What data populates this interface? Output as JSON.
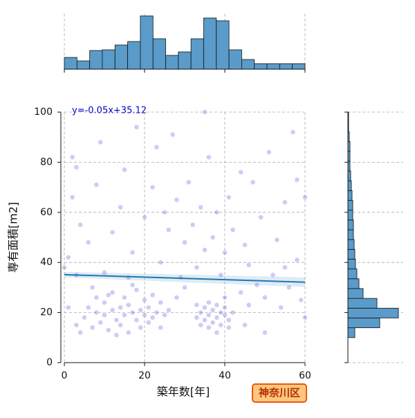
{
  "chart_data": {
    "type": "jointplot",
    "x_label": "築年数[年]",
    "y_label": "専有面積[m2]",
    "annotation": "y=-0.05x+35.12",
    "region_label": "神奈川区",
    "regression": {
      "slope": -0.05,
      "intercept": 35.12
    },
    "color": "#0000cc",
    "line_color": "#1f77b4",
    "hist_color": "#5a9bc9",
    "xlim": [
      0,
      60
    ],
    "xticks": [
      0,
      20,
      40,
      60
    ],
    "ylim": [
      0,
      100
    ],
    "yticks": [
      0,
      20,
      40,
      60,
      80,
      100
    ],
    "grid": true,
    "x": [
      5,
      6,
      7,
      8,
      8,
      9,
      10,
      10,
      11,
      12,
      12,
      13,
      14,
      14,
      15,
      15,
      16,
      16,
      17,
      18,
      18,
      19,
      19,
      20,
      20,
      21,
      21,
      22,
      23,
      24,
      24,
      25,
      7,
      11,
      13,
      17,
      22,
      3,
      4,
      26,
      33,
      34,
      34,
      35,
      35,
      36,
      36,
      37,
      37,
      38,
      38,
      39,
      39,
      40,
      40,
      41,
      41,
      42,
      36,
      38,
      33,
      40,
      1,
      2,
      3,
      2,
      4,
      6,
      8,
      10,
      12,
      14,
      15,
      17,
      18,
      20,
      22,
      23,
      24,
      26,
      27,
      28,
      29,
      30,
      31,
      32,
      33,
      34,
      35,
      36,
      37,
      38,
      39,
      40,
      41,
      42,
      44,
      45,
      46,
      47,
      48,
      49,
      50,
      51,
      52,
      53,
      54,
      55,
      56,
      57,
      58,
      59,
      60,
      60,
      46,
      50,
      55,
      44,
      28,
      30,
      3,
      1,
      0,
      9,
      16,
      25,
      45,
      58,
      35
    ],
    "y": [
      18,
      22,
      14,
      20,
      26,
      16,
      19,
      24,
      13,
      21,
      28,
      17,
      22,
      15,
      19,
      26,
      12,
      23,
      20,
      17,
      29,
      21,
      14,
      19,
      25,
      22,
      16,
      18,
      20,
      14,
      24,
      19,
      30,
      27,
      11,
      31,
      27,
      15,
      12,
      21,
      18,
      20,
      15,
      22,
      17,
      19,
      14,
      21,
      16,
      18,
      23,
      20,
      15,
      19,
      22,
      17,
      14,
      20,
      24,
      12,
      23,
      26,
      42,
      66,
      78,
      82,
      55,
      48,
      71,
      36,
      52,
      62,
      77,
      44,
      94,
      58,
      70,
      86,
      40,
      53,
      91,
      65,
      34,
      48,
      72,
      55,
      38,
      62,
      45,
      82,
      50,
      60,
      35,
      44,
      66,
      53,
      28,
      47,
      39,
      72,
      31,
      58,
      26,
      84,
      35,
      49,
      22,
      64,
      30,
      92,
      41,
      25,
      66,
      18,
      23,
      12,
      38,
      76,
      26,
      30,
      35,
      22,
      38,
      88,
      34,
      60,
      15,
      73,
      100
    ],
    "top_hist": {
      "bins": [
        0,
        3.16,
        6.32,
        9.47,
        12.63,
        15.79,
        18.95,
        22.11,
        25.26,
        28.42,
        31.58,
        34.74,
        37.89,
        41.05,
        44.21,
        47.37,
        50.53,
        53.68,
        56.84,
        60
      ],
      "counts": [
        34,
        24,
        54,
        56,
        70,
        80,
        154,
        88,
        40,
        50,
        88,
        148,
        140,
        56,
        28,
        16,
        16,
        16,
        16
      ],
      "ylim": [
        0,
        160
      ]
    },
    "right_hist": {
      "bins": [
        10,
        13.91,
        17.83,
        21.74,
        25.65,
        29.57,
        33.48,
        37.39,
        41.3,
        45.22,
        49.13,
        53.04,
        56.96,
        60.87,
        64.78,
        68.7,
        72.61,
        76.52,
        80.43,
        84.35,
        88.26,
        92.17,
        96.09,
        100
      ],
      "counts": [
        40,
        184,
        292,
        168,
        88,
        64,
        52,
        44,
        40,
        36,
        32,
        32,
        28,
        28,
        24,
        20,
        16,
        12,
        12,
        12,
        8,
        4,
        4
      ],
      "xlim": [
        0,
        320
      ]
    }
  }
}
